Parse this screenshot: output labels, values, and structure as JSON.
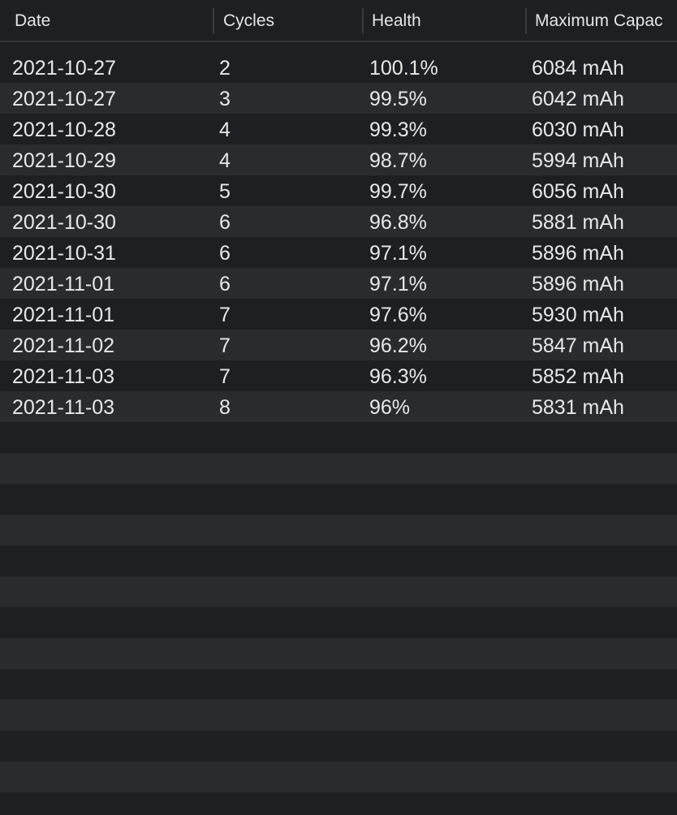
{
  "table": {
    "columns": [
      {
        "label": "Date"
      },
      {
        "label": "Cycles"
      },
      {
        "label": "Health"
      },
      {
        "label": "Maximum Capac"
      }
    ],
    "rows": [
      {
        "date": "2021-10-27",
        "cycles": "2",
        "health": "100.1%",
        "capacity": "6084 mAh"
      },
      {
        "date": "2021-10-27",
        "cycles": "3",
        "health": "99.5%",
        "capacity": "6042 mAh"
      },
      {
        "date": "2021-10-28",
        "cycles": "4",
        "health": "99.3%",
        "capacity": "6030 mAh"
      },
      {
        "date": "2021-10-29",
        "cycles": "4",
        "health": "98.7%",
        "capacity": "5994 mAh"
      },
      {
        "date": "2021-10-30",
        "cycles": "5",
        "health": "99.7%",
        "capacity": "6056 mAh"
      },
      {
        "date": "2021-10-30",
        "cycles": "6",
        "health": "96.8%",
        "capacity": "5881 mAh"
      },
      {
        "date": "2021-10-31",
        "cycles": "6",
        "health": "97.1%",
        "capacity": "5896 mAh"
      },
      {
        "date": "2021-11-01",
        "cycles": "6",
        "health": "97.1%",
        "capacity": "5896 mAh"
      },
      {
        "date": "2021-11-01",
        "cycles": "7",
        "health": "97.6%",
        "capacity": "5930 mAh"
      },
      {
        "date": "2021-11-02",
        "cycles": "7",
        "health": "96.2%",
        "capacity": "5847 mAh"
      },
      {
        "date": "2021-11-03",
        "cycles": "7",
        "health": "96.3%",
        "capacity": "5852 mAh"
      },
      {
        "date": "2021-11-03",
        "cycles": "8",
        "health": "96%",
        "capacity": "5831 mAh"
      }
    ]
  }
}
